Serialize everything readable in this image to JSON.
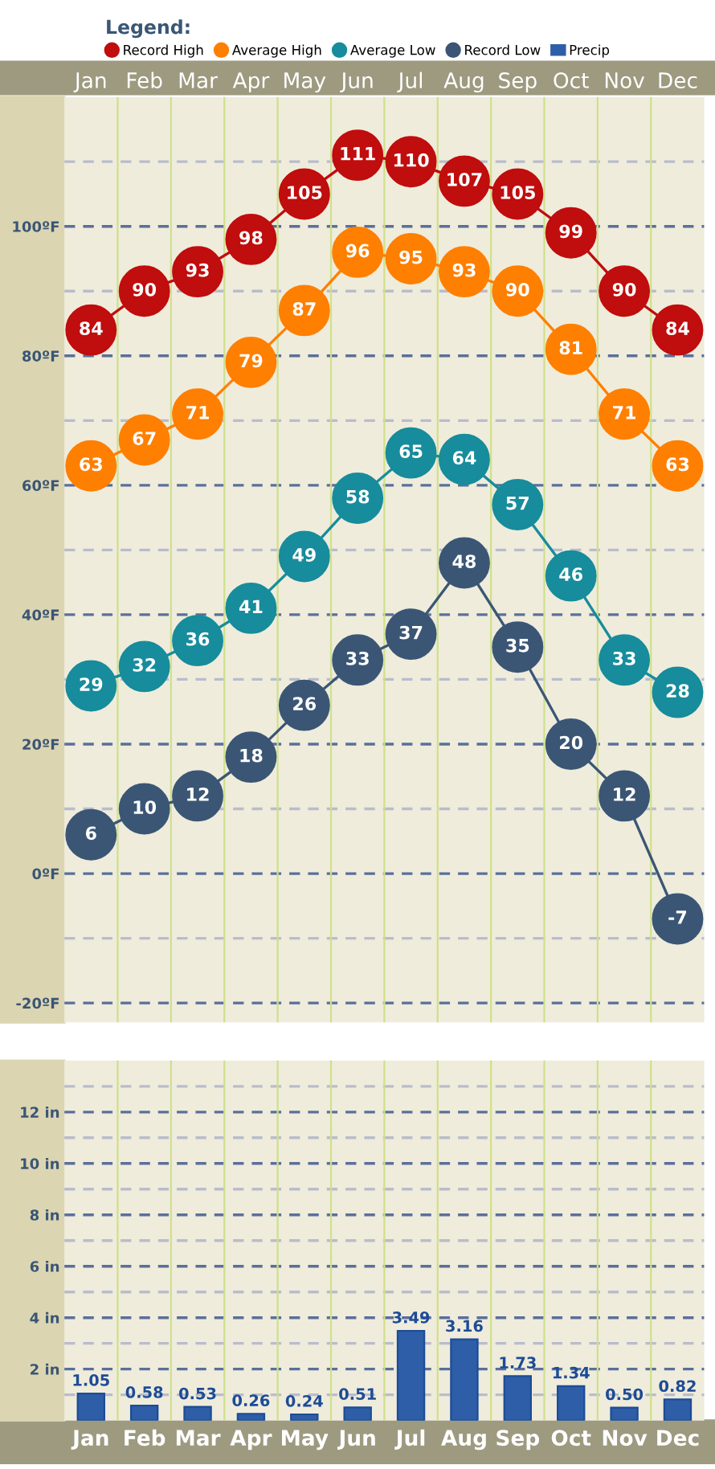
{
  "chart_data": [
    {
      "type": "line",
      "legend_title": "Legend:",
      "legend": "top",
      "categories": [
        "Jan",
        "Feb",
        "Mar",
        "Apr",
        "May",
        "Jun",
        "Jul",
        "Aug",
        "Sep",
        "Oct",
        "Nov",
        "Dec"
      ],
      "series": [
        {
          "name": "Record High",
          "color": "#c00d0d",
          "values": [
            84,
            90,
            93,
            98,
            105,
            111,
            110,
            107,
            105,
            99,
            90,
            84
          ]
        },
        {
          "name": "Average High",
          "color": "#ff7f00",
          "values": [
            63,
            67,
            71,
            79,
            87,
            96,
            95,
            93,
            90,
            81,
            71,
            63
          ]
        },
        {
          "name": "Average Low",
          "color": "#178c9c",
          "values": [
            29,
            32,
            36,
            41,
            49,
            58,
            65,
            64,
            57,
            46,
            33,
            28
          ]
        },
        {
          "name": "Record Low",
          "color": "#3b5675",
          "values": [
            6,
            10,
            12,
            18,
            26,
            33,
            37,
            48,
            35,
            20,
            12,
            -7
          ]
        }
      ],
      "marker": "circle",
      "data_labels": true,
      "grid": "y",
      "ylim": [
        -23,
        120
      ],
      "yticks": [
        {
          "value": -20,
          "label": "-20ºF"
        },
        {
          "value": -10,
          "label": null
        },
        {
          "value": 0,
          "label": "0ºF"
        },
        {
          "value": 10,
          "label": null
        },
        {
          "value": 20,
          "label": "20ºF"
        },
        {
          "value": 30,
          "label": null
        },
        {
          "value": 40,
          "label": "40ºF"
        },
        {
          "value": 50,
          "label": null
        },
        {
          "value": 60,
          "label": "60ºF"
        },
        {
          "value": 70,
          "label": null
        },
        {
          "value": 80,
          "label": "80ºF"
        },
        {
          "value": 90,
          "label": null
        },
        {
          "value": 100,
          "label": "100ºF"
        },
        {
          "value": 110,
          "label": null
        }
      ]
    },
    {
      "type": "bar",
      "legend": "top",
      "categories": [
        "Jan",
        "Feb",
        "Mar",
        "Apr",
        "May",
        "Jun",
        "Jul",
        "Aug",
        "Sep",
        "Oct",
        "Nov",
        "Dec"
      ],
      "series": [
        {
          "name": "Precip",
          "color": "#2f5ea8",
          "values": [
            1.05,
            0.58,
            0.53,
            0.26,
            0.24,
            0.51,
            3.49,
            3.16,
            1.73,
            1.34,
            0.5,
            0.82
          ],
          "value_labels": [
            "1.05",
            "0.58",
            "0.53",
            "0.26",
            "0.24",
            "0.51",
            "3.49",
            "3.16",
            "1.73",
            "1.34",
            "0.50",
            "0.82"
          ]
        }
      ],
      "grid": "y",
      "ylim": [
        0,
        14
      ],
      "yticks": [
        {
          "value": 1,
          "label": null
        },
        {
          "value": 2,
          "label": "2 in"
        },
        {
          "value": 3,
          "label": null
        },
        {
          "value": 4,
          "label": "4 in"
        },
        {
          "value": 5,
          "label": null
        },
        {
          "value": 6,
          "label": "6 in"
        },
        {
          "value": 7,
          "label": null
        },
        {
          "value": 8,
          "label": "8 in"
        },
        {
          "value": 9,
          "label": null
        },
        {
          "value": 10,
          "label": "10 in"
        },
        {
          "value": 11,
          "label": null
        },
        {
          "value": 12,
          "label": "12 in"
        },
        {
          "value": 13,
          "label": null
        }
      ]
    }
  ]
}
